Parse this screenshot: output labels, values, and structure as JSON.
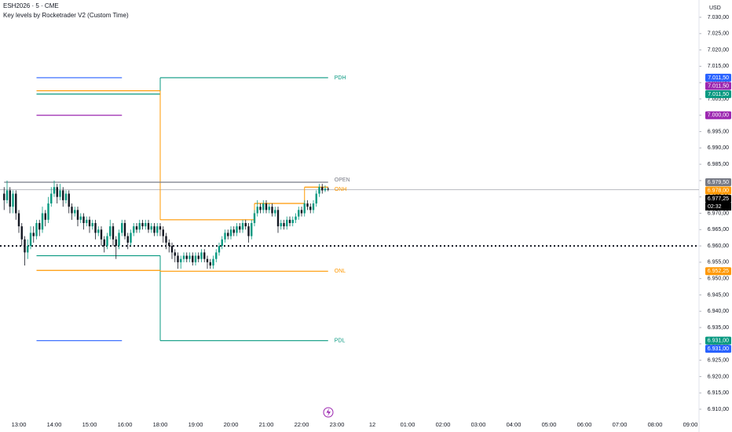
{
  "chart_data": {
    "type": "candlestick",
    "symbol": "ESH2026 · 5 · CME",
    "indicator": "Key levels by Rocketrader V2 (Custom Time)",
    "currency": "USD",
    "up_color": "#089981",
    "down_color": "#131722",
    "ylim": [
      6910,
      7030
    ],
    "yticks": [
      {
        "value": 6910,
        "label": "6.910,00"
      },
      {
        "value": 6915,
        "label": "6.915,00"
      },
      {
        "value": 6920,
        "label": "6.920,00"
      },
      {
        "value": 6925,
        "label": "6.925,00"
      },
      {
        "value": 6930,
        "label": "6.930,00"
      },
      {
        "value": 6935,
        "label": "6.935,00"
      },
      {
        "value": 6940,
        "label": "6.940,00"
      },
      {
        "value": 6945,
        "label": "6.945,00"
      },
      {
        "value": 6950,
        "label": "6.950,00"
      },
      {
        "value": 6955,
        "label": "6.955,00"
      },
      {
        "value": 6960,
        "label": "6.960,00"
      },
      {
        "value": 6965,
        "label": "6.965,00"
      },
      {
        "value": 6970,
        "label": "6.970,00"
      },
      {
        "value": 6975,
        "label": "6.975,00"
      },
      {
        "value": 6980,
        "label": "6.980,00"
      },
      {
        "value": 6985,
        "label": "6.985,00"
      },
      {
        "value": 6990,
        "label": "6.990,00"
      },
      {
        "value": 6995,
        "label": "6.995,00"
      },
      {
        "value": 7000,
        "label": "7.000,00"
      },
      {
        "value": 7005,
        "label": "7.005,00"
      },
      {
        "value": 7010,
        "label": "7.010,00"
      },
      {
        "value": 7015,
        "label": "7.015,00"
      },
      {
        "value": 7020,
        "label": "7.020,00"
      },
      {
        "value": 7025,
        "label": "7.025,00"
      },
      {
        "value": 7030,
        "label": "7.030,00"
      }
    ],
    "xticks": [
      "13:00",
      "14:00",
      "15:00",
      "16:00",
      "18:00",
      "19:00",
      "20:00",
      "21:00",
      "22:00",
      "23:00",
      "12",
      "01:00",
      "02:00",
      "03:00",
      "04:00",
      "05:00",
      "06:00",
      "07:00",
      "08:00",
      "09:00"
    ],
    "candles": {
      "x": [
        "12:35",
        "12:40",
        "12:45",
        "12:50",
        "12:55",
        "13:00",
        "13:05",
        "13:10",
        "13:15",
        "13:20",
        "13:25",
        "13:30",
        "13:35",
        "13:40",
        "13:45",
        "13:50",
        "13:55",
        "14:00",
        "14:05",
        "14:10",
        "14:15",
        "14:20",
        "14:25",
        "14:30",
        "14:35",
        "14:40",
        "14:45",
        "14:50",
        "14:55",
        "15:00",
        "15:05",
        "15:10",
        "15:15",
        "15:20",
        "15:25",
        "15:30",
        "15:35",
        "15:40",
        "15:45",
        "15:50",
        "15:55",
        "16:00",
        "16:05",
        "16:10",
        "16:15",
        "16:20",
        "16:25",
        "16:30",
        "16:35",
        "16:40",
        "16:45",
        "16:50",
        "16:55",
        "18:00",
        "18:05",
        "18:10",
        "18:15",
        "18:20",
        "18:25",
        "18:30",
        "18:35",
        "18:40",
        "18:45",
        "18:50",
        "18:55",
        "19:00",
        "19:05",
        "19:10",
        "19:15",
        "19:20",
        "19:25",
        "19:30",
        "19:35",
        "19:40",
        "19:45",
        "19:50",
        "19:55",
        "20:00",
        "20:05",
        "20:10",
        "20:15",
        "20:20",
        "20:25",
        "20:30",
        "20:35",
        "20:40",
        "20:45",
        "20:50",
        "20:55",
        "21:00",
        "21:05",
        "21:10",
        "21:15",
        "21:20",
        "21:25",
        "21:30",
        "21:35",
        "21:40",
        "21:45",
        "21:50",
        "21:55",
        "22:00",
        "22:05",
        "22:10",
        "22:15",
        "22:20",
        "22:25",
        "22:30",
        "22:35",
        "22:40",
        "22:45"
      ],
      "ohlc": [
        [
          6976,
          6978,
          6971,
          6974
        ],
        [
          6974,
          6980,
          6973,
          6977
        ],
        [
          6977,
          6978,
          6970,
          6972
        ],
        [
          6972,
          6977,
          6970,
          6976
        ],
        [
          6976,
          6977,
          6968,
          6970
        ],
        [
          6970,
          6971,
          6964,
          6966
        ],
        [
          6966,
          6967,
          6960,
          6962
        ],
        [
          6962,
          6963,
          6954,
          6958
        ],
        [
          6958,
          6962,
          6956,
          6960
        ],
        [
          6960,
          6966,
          6959,
          6964
        ],
        [
          6964,
          6966,
          6961,
          6963
        ],
        [
          6963,
          6968,
          6962,
          6967
        ],
        [
          6967,
          6968,
          6963,
          6965
        ],
        [
          6965,
          6972,
          6964,
          6970
        ],
        [
          6970,
          6971,
          6966,
          6968
        ],
        [
          6968,
          6975,
          6967,
          6973
        ],
        [
          6973,
          6978,
          6972,
          6976
        ],
        [
          6976,
          6980,
          6975,
          6978
        ],
        [
          6978,
          6979,
          6973,
          6975
        ],
        [
          6975,
          6979,
          6974,
          6977
        ],
        [
          6977,
          6978,
          6972,
          6974
        ],
        [
          6974,
          6977,
          6973,
          6976
        ],
        [
          6976,
          6977,
          6970,
          6972
        ],
        [
          6972,
          6973,
          6968,
          6970
        ],
        [
          6970,
          6972,
          6969,
          6971
        ],
        [
          6971,
          6972,
          6966,
          6968
        ],
        [
          6968,
          6970,
          6967,
          6969
        ],
        [
          6969,
          6970,
          6965,
          6967
        ],
        [
          6967,
          6969,
          6966,
          6968
        ],
        [
          6968,
          6969,
          6964,
          6966
        ],
        [
          6966,
          6968,
          6965,
          6967
        ],
        [
          6967,
          6968,
          6962,
          6964
        ],
        [
          6964,
          6966,
          6963,
          6965
        ],
        [
          6965,
          6966,
          6960,
          6962
        ],
        [
          6962,
          6963,
          6958,
          6960
        ],
        [
          6960,
          6964,
          6959,
          6963
        ],
        [
          6963,
          6968,
          6962,
          6966
        ],
        [
          6966,
          6967,
          6960,
          6962
        ],
        [
          6962,
          6963,
          6956,
          6960
        ],
        [
          6960,
          6965,
          6959,
          6964
        ],
        [
          6964,
          6968,
          6963,
          6967
        ],
        [
          6967,
          6968,
          6962,
          6963
        ],
        [
          6963,
          6964,
          6959,
          6961
        ],
        [
          6961,
          6965,
          6960,
          6964
        ],
        [
          6964,
          6967,
          6963,
          6966
        ],
        [
          6966,
          6967,
          6964,
          6965
        ],
        [
          6965,
          6968,
          6964,
          6967
        ],
        [
          6967,
          6968,
          6965,
          6966
        ],
        [
          6966,
          6968,
          6965,
          6967
        ],
        [
          6967,
          6968,
          6964,
          6965
        ],
        [
          6965,
          6967,
          6964,
          6966
        ],
        [
          6966,
          6967,
          6963,
          6964
        ],
        [
          6964,
          6967,
          6963,
          6966
        ],
        [
          6966,
          6967,
          6963,
          6965
        ],
        [
          6965,
          6966,
          6961,
          6963
        ],
        [
          6963,
          6964,
          6959,
          6961
        ],
        [
          6961,
          6962,
          6958,
          6960
        ],
        [
          6960,
          6961,
          6956,
          6958
        ],
        [
          6958,
          6959,
          6955,
          6957
        ],
        [
          6957,
          6958,
          6953,
          6955
        ],
        [
          6955,
          6957,
          6953,
          6956
        ],
        [
          6956,
          6958,
          6955,
          6957
        ],
        [
          6957,
          6958,
          6955,
          6956
        ],
        [
          6956,
          6958,
          6955,
          6957
        ],
        [
          6957,
          6958,
          6954,
          6955
        ],
        [
          6955,
          6958,
          6954,
          6957
        ],
        [
          6957,
          6958,
          6955,
          6956
        ],
        [
          6956,
          6959,
          6955,
          6958
        ],
        [
          6958,
          6959,
          6955,
          6956
        ],
        [
          6956,
          6957,
          6953,
          6955
        ],
        [
          6955,
          6956,
          6953,
          6954
        ],
        [
          6954,
          6957,
          6953,
          6956
        ],
        [
          6956,
          6959,
          6955,
          6958
        ],
        [
          6958,
          6961,
          6957,
          6960
        ],
        [
          6960,
          6963,
          6959,
          6962
        ],
        [
          6962,
          6965,
          6961,
          6964
        ],
        [
          6964,
          6965,
          6962,
          6963
        ],
        [
          6963,
          6966,
          6962,
          6965
        ],
        [
          6965,
          6966,
          6963,
          6964
        ],
        [
          6964,
          6967,
          6963,
          6966
        ],
        [
          6966,
          6967,
          6964,
          6965
        ],
        [
          6965,
          6968,
          6964,
          6967
        ],
        [
          6967,
          6968,
          6965,
          6966
        ],
        [
          6966,
          6967,
          6961,
          6963
        ],
        [
          6963,
          6968,
          6962,
          6967
        ],
        [
          6967,
          6971,
          6966,
          6970
        ],
        [
          6970,
          6974,
          6969,
          6972
        ],
        [
          6972,
          6973,
          6970,
          6971
        ],
        [
          6971,
          6974,
          6970,
          6973
        ],
        [
          6973,
          6974,
          6970,
          6971
        ],
        [
          6971,
          6973,
          6970,
          6972
        ],
        [
          6972,
          6973,
          6969,
          6970
        ],
        [
          6970,
          6972,
          6969,
          6971
        ],
        [
          6971,
          6972,
          6964,
          6966
        ],
        [
          6966,
          6968,
          6965,
          6967
        ],
        [
          6967,
          6968,
          6965,
          6966
        ],
        [
          6966,
          6969,
          6965,
          6968
        ],
        [
          6968,
          6969,
          6966,
          6967
        ],
        [
          6967,
          6969,
          6966,
          6968
        ],
        [
          6968,
          6970,
          6967,
          6969
        ],
        [
          6969,
          6972,
          6968,
          6971
        ],
        [
          6971,
          6972,
          6969,
          6970
        ],
        [
          6970,
          6974,
          6969,
          6973
        ],
        [
          6973,
          6974,
          6971,
          6972
        ],
        [
          6972,
          6973,
          6970,
          6971
        ],
        [
          6971,
          6974,
          6970,
          6973
        ],
        [
          6973,
          6977,
          6972,
          6976
        ],
        [
          6976,
          6979,
          6975,
          6978
        ],
        [
          6978,
          6979,
          6976,
          6977
        ],
        [
          6977,
          6978.5,
          6976.5,
          6977.5
        ],
        [
          6977.5,
          6978,
          6976.75,
          6977.25
        ]
      ]
    },
    "levels": [
      {
        "color": "#089981",
        "x": [
          "13:30",
          "18:00",
          "22:45"
        ],
        "values": [
          7006.5,
          7011.5,
          7011.5
        ],
        "label": "PDH"
      },
      {
        "color": "#089981",
        "x": [
          "13:30",
          "18:00",
          "22:45"
        ],
        "values": [
          6957,
          6931,
          6931
        ],
        "label": "PDL"
      },
      {
        "color": "#ff9800",
        "x": [
          "13:30",
          "18:00",
          "20:40",
          "22:05",
          "22:45"
        ],
        "values": [
          7007.5,
          6968,
          6973,
          6978,
          6978
        ],
        "label": "ONH"
      },
      {
        "color": "#ff9800",
        "x": [
          "13:30",
          "18:00",
          "22:45"
        ],
        "values": [
          6952.5,
          6952.25,
          6952.25
        ],
        "label": "ONL"
      },
      {
        "color": "#787b86",
        "x": [
          "12:35",
          "22:45"
        ],
        "values": [
          6979.5,
          6979.5
        ],
        "label": "OPEN"
      },
      {
        "color": "#2962ff",
        "x": [
          "13:30",
          "15:55"
        ],
        "values": [
          7011.5,
          7011.5
        ]
      },
      {
        "color": "#2962ff",
        "x": [
          "13:30",
          "15:55"
        ],
        "values": [
          6931,
          6931
        ]
      },
      {
        "color": "#9c27b0",
        "x": [
          "13:30",
          "15:55"
        ],
        "values": [
          7000,
          7000
        ]
      }
    ],
    "dotted_line": 6960,
    "last_price": 6977.25,
    "price_tags": [
      {
        "value": 7011.5,
        "label": "7.011,50",
        "color": "#2962ff"
      },
      {
        "value": 7011.5,
        "label": "7.011,50",
        "color": "#9c27b0"
      },
      {
        "value": 7011.5,
        "label": "7.011,50",
        "color": "#089981"
      },
      {
        "value": 7000,
        "label": "7.000,00",
        "color": "#9c27b0"
      },
      {
        "value": 6979.5,
        "label": "6.979,50",
        "color": "#787b86"
      },
      {
        "value": 6978,
        "label": "6.978,00",
        "color": "#ff9800"
      },
      {
        "value": 6977.25,
        "label": "6.977,25",
        "color": "#000000",
        "countdown": "02:32"
      },
      {
        "value": 6952.25,
        "label": "6.952,25",
        "color": "#ff9800"
      },
      {
        "value": 6931,
        "label": "6.931,00",
        "color": "#089981"
      },
      {
        "value": 6931,
        "label": "6.931,00",
        "color": "#2962ff"
      }
    ]
  }
}
